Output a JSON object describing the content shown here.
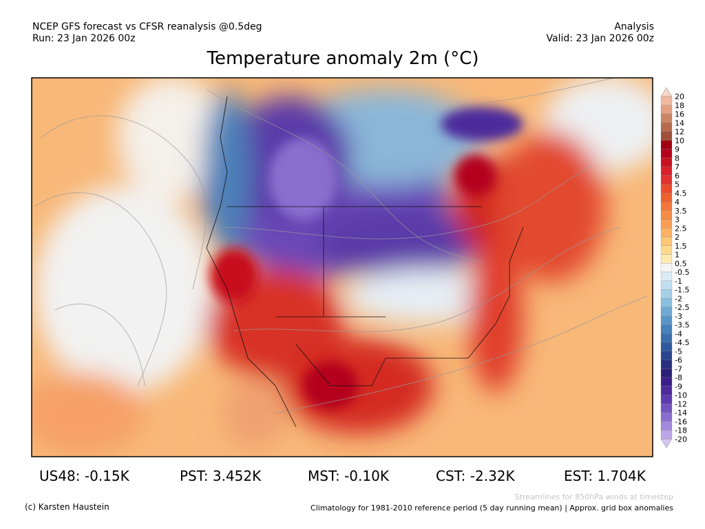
{
  "header": {
    "model_line": "NCEP GFS forecast vs CFSR reanalysis @0.5deg",
    "run_line": "Run: 23 Jan 2026 00z",
    "kind_line": "Analysis",
    "valid_line": "Valid: 23 Jan 2026 00z",
    "title": "Temperature anomaly 2m (°C)"
  },
  "colorbar": {
    "labels": [
      "20",
      "18",
      "16",
      "14",
      "12",
      "10",
      "9",
      "8",
      "7",
      "6",
      "5",
      "4.5",
      "4",
      "3.5",
      "3",
      "2.5",
      "2",
      "1.5",
      "1",
      "0.5",
      "-0.5",
      "-1",
      "-1.5",
      "-2",
      "-2.5",
      "-3",
      "-3.5",
      "-4",
      "-4.5",
      "-5",
      "-6",
      "-7",
      "-8",
      "-9",
      "-10",
      "-12",
      "-14",
      "-16",
      "-18",
      "-20"
    ],
    "colors": [
      "#f6d4c6",
      "#f0b9a0",
      "#e3a081",
      "#cd8664",
      "#b86b4c",
      "#9e5038",
      "#a00010",
      "#b4001a",
      "#c8101e",
      "#d9202a",
      "#e53030",
      "#ec4a2f",
      "#f06030",
      "#f4763a",
      "#f78b45",
      "#f99e52",
      "#fbb262",
      "#fcc675",
      "#fdd98c",
      "#fdeab0",
      "#f5f5f5",
      "#dcecf7",
      "#c2dff0",
      "#a6d0e8",
      "#8abfdf",
      "#6eaad3",
      "#5896c8",
      "#4682bc",
      "#3a6eae",
      "#30599f",
      "#2a4490",
      "#283080",
      "#2a1f78",
      "#3a1f8a",
      "#4c2a9c",
      "#5e3aae",
      "#7454c0",
      "#8a6ecf",
      "#a28adc",
      "#bca6e8",
      "#d4c4f2"
    ]
  },
  "stats": [
    "US48: -0.15K",
    "PST: 3.452K",
    "MST: -0.10K",
    "CST: -2.32K",
    "EST: 1.704K"
  ],
  "footer": {
    "credit": "(c) Karsten Haustein",
    "streamlines_note": "Streamlines for 850hPa winds at timestep",
    "climatology_note": "Climatology for 1981-2010 reference period (5 day running mean) | Approx. grid box anomalies"
  }
}
